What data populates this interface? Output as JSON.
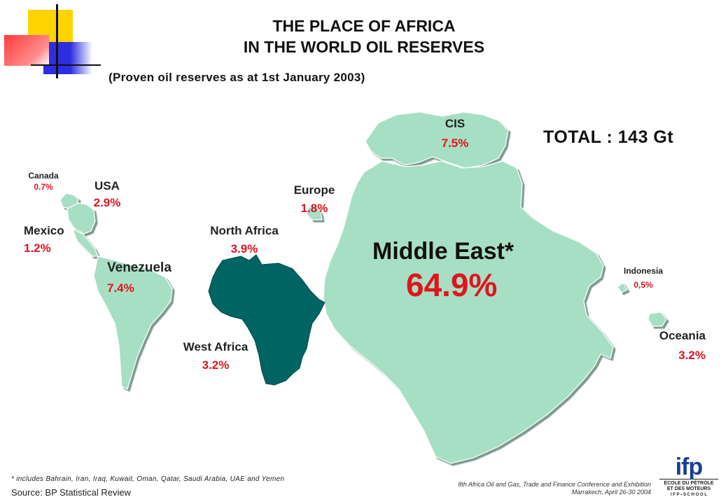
{
  "title_line1": "THE PLACE OF AFRICA",
  "title_line2": "IN THE WORLD OIL RESERVES",
  "subtitle": "(Proven oil reserves as at 1st  January 2003)",
  "total": "TOTAL : 143 Gt",
  "regions": {
    "canada": {
      "name": "Canada",
      "pct": "0.7%"
    },
    "usa": {
      "name": "USA",
      "pct": "2.9%"
    },
    "mexico": {
      "name": "Mexico",
      "pct": "1.2%"
    },
    "venezuela": {
      "name": "Venezuela",
      "pct": "7.4%"
    },
    "north_africa": {
      "name": "North Africa",
      "pct": "3.9%"
    },
    "west_africa": {
      "name": "West Africa",
      "pct": "3.2%"
    },
    "europe": {
      "name": "Europe",
      "pct": "1.8%"
    },
    "cis": {
      "name": "CIS",
      "pct": "7.5%"
    },
    "middle_east": {
      "name": "Middle East*",
      "pct": "64.9%"
    },
    "indonesia": {
      "name": "Indonesia",
      "pct": "0,5%"
    },
    "oceania": {
      "name": "Oceania",
      "pct": "3.2%"
    }
  },
  "footnote": "* includes Bahrain, Iran, Iraq, Kuwait, Oman, Qatar, Saudi Arabia, UAE and Yemen",
  "source": "Source: BP Statistical Review",
  "conference_line1": "8th Africa Oil and Gas, Trade and Finance Conference and Exhibition",
  "conference_line2": "Marrakech, April 26-30 2004",
  "logo": {
    "mark": "ifp",
    "line1": "ÉCOLE DU PÉTROLE",
    "line2": "ET DES MOTEURS",
    "line3": "I F P ▪ S C H O O L"
  },
  "colors": {
    "land": "#a7dfc4",
    "land_shadow": "#6f8f84",
    "africa": "#006463",
    "percent": "#e0141e",
    "deco_yellow": "#ffd400",
    "deco_red": "#ff3b3b",
    "deco_blue": "#2d2ee0"
  }
}
